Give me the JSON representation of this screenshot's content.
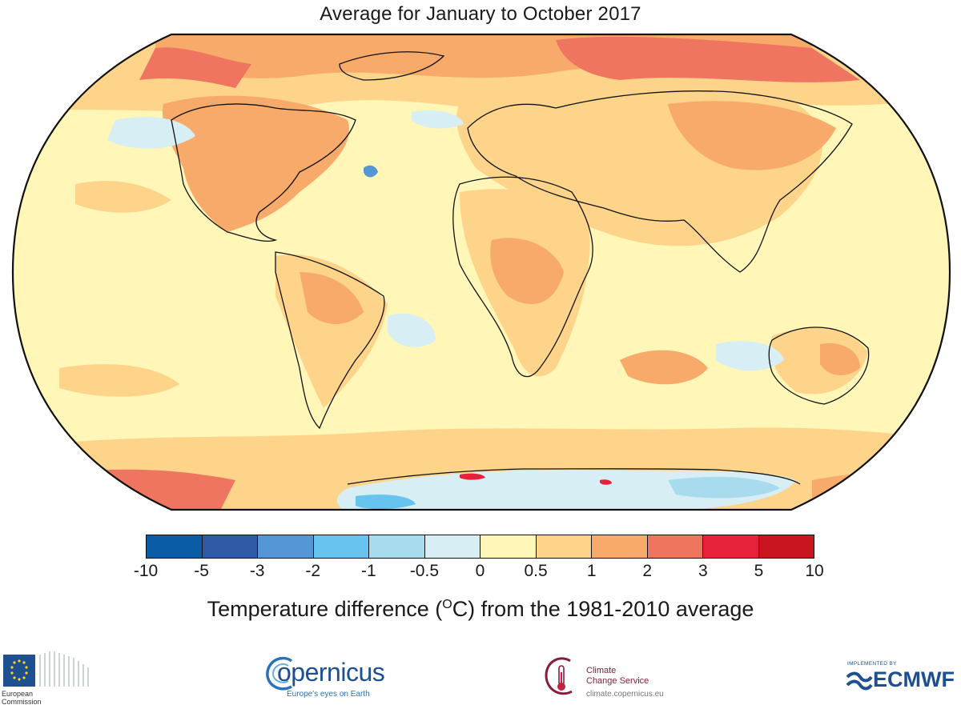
{
  "title": "Average for January to October 2017",
  "caption_main": "Temperature difference (",
  "caption_sup": "O",
  "caption_rest": "C) from the 1981-2010 average",
  "legend": {
    "colors": [
      "#0a5ca6",
      "#2e5aa8",
      "#5496d6",
      "#66c4ef",
      "#a9dbee",
      "#d6eef4",
      "#fff6b8",
      "#fdd48a",
      "#f8aa6a",
      "#f07560",
      "#e8213a",
      "#c8141e"
    ],
    "ticks": [
      "-10",
      "-5",
      "-3",
      "-2",
      "-1",
      "-0.5",
      "0",
      "0.5",
      "1",
      "2",
      "3",
      "5",
      "10"
    ]
  },
  "logos": {
    "ec_line1": "European",
    "ec_line2": "Commission",
    "copernicus_word": "opernicus",
    "copernicus_tagline": "Europe's eyes on Earth",
    "c3s_line1": "Climate",
    "c3s_line2": "Change Service",
    "c3s_url": "climate.copernicus.eu",
    "ecmwf_implemented": "IMPLEMENTED BY",
    "ecmwf_word": "ECMWF"
  }
}
